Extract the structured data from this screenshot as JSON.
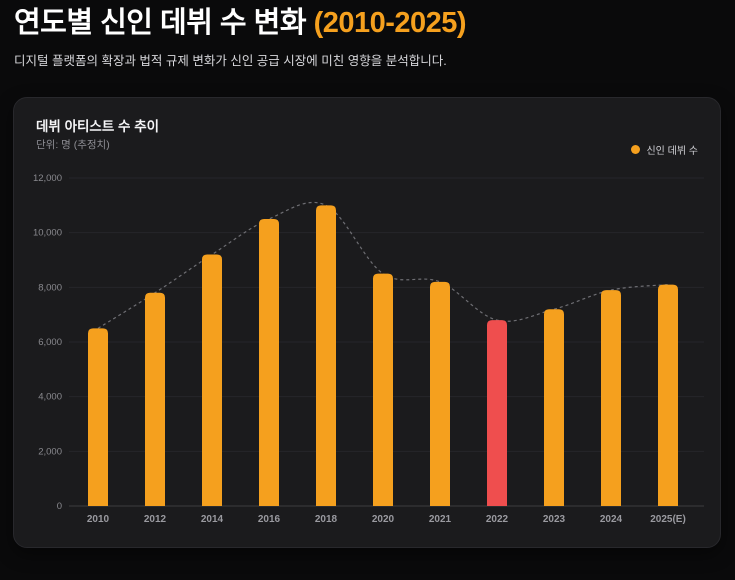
{
  "page": {
    "title_main": "연도별 신인 데뷔 수 변화 ",
    "title_highlight": "(2010-2025)",
    "subtitle": "디지털 플랫폼의 확장과 법적 규제 변화가 신인 공급 시장에 미친 영향을 분석합니다."
  },
  "card": {
    "title": "데뷔 아티스트 수 추이",
    "subtitle": "단위: 명 (추정치)",
    "legend_label": "신인 데뷔 수"
  },
  "colors": {
    "accent_orange": "#F5A01E",
    "highlight_red": "#EF4E4E",
    "page_bg": "#0A0A0B",
    "card_bg": "#1B1B1D",
    "card_border": "#28282C",
    "grid": "#26262A",
    "axis_line": "#3C3C40",
    "trend_line": "#6E6E73",
    "tick_label": "#8A8A8F",
    "x_label": "#9A9AA0"
  },
  "chart_data": {
    "type": "bar",
    "title": "데뷔 아티스트 수 추이",
    "unit_label": "단위: 명 (추정치)",
    "legend": [
      {
        "label": "신인 데뷔 수",
        "color": "#F5A01E",
        "position": "top-right"
      }
    ],
    "categories": [
      "2010",
      "2012",
      "2014",
      "2016",
      "2018",
      "2020",
      "2021",
      "2022",
      "2023",
      "2024",
      "2025(E)"
    ],
    "values": [
      6500,
      7800,
      9200,
      10500,
      11000,
      8500,
      8200,
      6800,
      7200,
      7900,
      8100
    ],
    "highlight_index": 7,
    "highlight_category": "2022",
    "bar_color": "#F5A01E",
    "highlight_color": "#EF4E4E",
    "trendline": {
      "style": "dashed",
      "smooth": true,
      "follows": "values"
    },
    "xlabel": "",
    "ylabel": "명 (추정치)",
    "ylim": [
      0,
      12000
    ],
    "ytick_step": 2000,
    "grid": true
  }
}
